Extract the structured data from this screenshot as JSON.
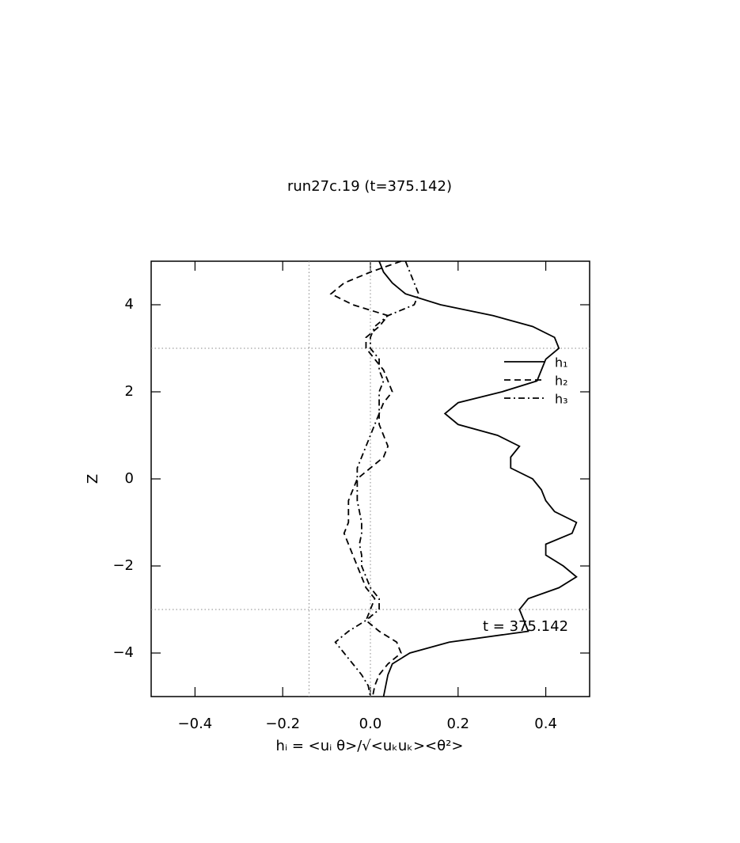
{
  "chart_data": {
    "type": "line",
    "title": "run27c.19 (t=375.142)",
    "x_label": "hᵢ = <uᵢ θ>/√<uₖuₖ><θ²>",
    "y_label": "Z",
    "annotation": "t = 375.142",
    "xlim": [
      -0.5,
      0.5
    ],
    "ylim": [
      -5,
      5
    ],
    "xticks": [
      {
        "value": -0.4,
        "label": "−0.4"
      },
      {
        "value": -0.2,
        "label": "−0.2"
      },
      {
        "value": 0.0,
        "label": "0.0"
      },
      0.2,
      0.4
    ],
    "yticks": [
      {
        "value": -4,
        "label": "−4"
      },
      {
        "value": -2,
        "label": "−2"
      },
      0,
      2,
      4
    ],
    "vlines": [
      -0.14,
      0
    ],
    "hlines": [
      3,
      -3
    ],
    "legend": "upper right",
    "z": [
      5,
      4.75,
      4.5,
      4.25,
      4,
      3.75,
      3.5,
      3.25,
      3,
      2.75,
      2.5,
      2.25,
      2,
      1.75,
      1.5,
      1.25,
      1,
      0.75,
      0.5,
      0.25,
      0,
      -0.25,
      -0.5,
      -0.75,
      -1,
      -1.25,
      -1.5,
      -1.75,
      -2,
      -2.25,
      -2.5,
      -2.75,
      -3,
      -3.25,
      -3.5,
      -3.75,
      -4,
      -4.25,
      -4.5,
      -4.75,
      -5
    ],
    "series": [
      {
        "name": "h₁",
        "color": "#000000",
        "dash": "solid",
        "values": [
          0.02,
          0.03,
          0.05,
          0.08,
          0.16,
          0.28,
          0.37,
          0.42,
          0.43,
          0.4,
          0.39,
          0.38,
          0.3,
          0.2,
          0.17,
          0.2,
          0.29,
          0.34,
          0.32,
          0.32,
          0.37,
          0.39,
          0.4,
          0.42,
          0.47,
          0.46,
          0.4,
          0.4,
          0.44,
          0.47,
          0.43,
          0.36,
          0.34,
          0.35,
          0.36,
          0.18,
          0.09,
          0.05,
          0.04,
          0.035,
          0.03
        ]
      },
      {
        "name": "h₂",
        "color": "#000000",
        "dash": "dashed",
        "values": [
          0.07,
          0.0,
          -0.06,
          -0.09,
          -0.04,
          0.04,
          0.02,
          -0.01,
          -0.01,
          0.01,
          0.03,
          0.04,
          0.05,
          0.03,
          0.02,
          0.02,
          0.03,
          0.04,
          0.03,
          0.0,
          -0.03,
          -0.04,
          -0.05,
          -0.05,
          -0.05,
          -0.06,
          -0.05,
          -0.04,
          -0.03,
          -0.02,
          -0.01,
          0.01,
          0.0,
          -0.01,
          0.02,
          0.06,
          0.07,
          0.04,
          0.02,
          0.01,
          0.005
        ]
      },
      {
        "name": "h₃",
        "color": "#000000",
        "dash": "dashdot",
        "values": [
          0.08,
          0.09,
          0.1,
          0.11,
          0.1,
          0.04,
          0.01,
          0.0,
          0.0,
          0.02,
          0.02,
          0.03,
          0.02,
          0.02,
          0.02,
          0.01,
          0.0,
          -0.01,
          -0.02,
          -0.03,
          -0.03,
          -0.03,
          -0.03,
          -0.025,
          -0.02,
          -0.02,
          -0.025,
          -0.02,
          -0.02,
          -0.01,
          0.0,
          0.02,
          0.02,
          -0.01,
          -0.05,
          -0.08,
          -0.06,
          -0.04,
          -0.02,
          -0.005,
          0.0
        ]
      }
    ]
  }
}
